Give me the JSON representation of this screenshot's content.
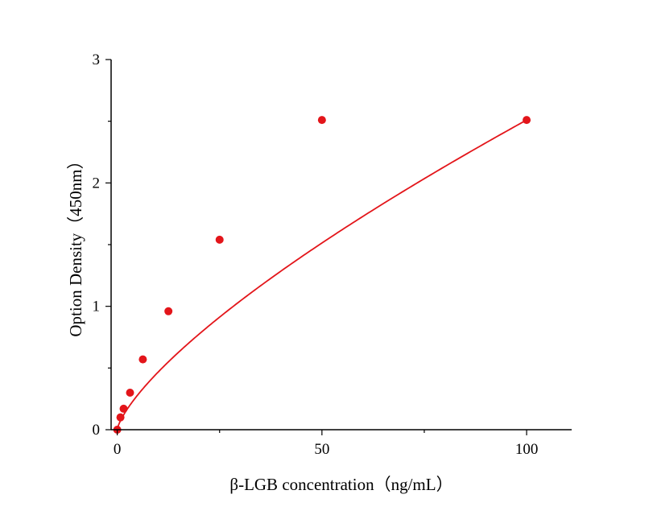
{
  "chart_data": {
    "type": "scatter",
    "title": "",
    "xlabel": "β-LGB concentration（ng/mL）",
    "ylabel": "Option Density（450nm）",
    "xlim": [
      -1.5,
      111
    ],
    "ylim": [
      0,
      3
    ],
    "xticks": [
      0,
      50,
      100
    ],
    "xtick_labels": [
      "0",
      "50",
      "100"
    ],
    "yticks": [
      0,
      1,
      2,
      3
    ],
    "ytick_labels": [
      "0",
      "1",
      "2",
      "3"
    ],
    "grid": false,
    "legend": "none",
    "series": [
      {
        "x": [
          0,
          0.78,
          1.56,
          3.125,
          6.25,
          12.5,
          25,
          50,
          100
        ],
        "y": [
          0.0,
          0.1,
          0.17,
          0.3,
          0.57,
          0.96,
          1.54,
          2.51,
          2.51
        ],
        "color": "#e3151a",
        "fit": "power-curve"
      }
    ]
  }
}
